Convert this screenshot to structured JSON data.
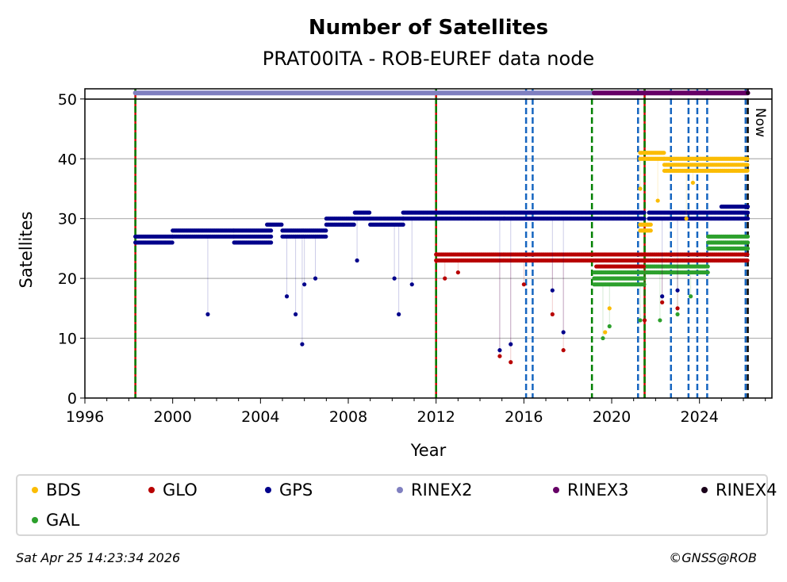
{
  "chart_data": {
    "type": "scatter",
    "title": "Number of Satellites",
    "subtitle": "PRAT00ITA - ROB-EUREF data node",
    "xlabel": "Year",
    "ylabel": "Satellites",
    "xlim": [
      1996,
      2027.3
    ],
    "ylim": [
      0,
      51.7
    ],
    "xticks": [
      "1996",
      "2000",
      "2004",
      "2008",
      "2012",
      "2016",
      "2020",
      "2024"
    ],
    "yticks": [
      "0",
      "10",
      "20",
      "30",
      "40",
      "50"
    ],
    "grid": "horizontal",
    "legend_placement": "below",
    "now_label": "Now",
    "series": [
      {
        "name": "BDS",
        "color": "#fbbc04",
        "segments": [
          {
            "from": 2021.3,
            "to": 2022.4,
            "values": [
              40,
              41
            ]
          },
          {
            "from": 2022.4,
            "to": 2026.2,
            "values": [
              38,
              39,
              40
            ]
          },
          {
            "from": 2021.3,
            "to": 2021.8,
            "values": [
              28,
              29
            ]
          }
        ],
        "outliers": [
          [
            2019.7,
            11
          ],
          [
            2019.9,
            15
          ],
          [
            2021.3,
            35
          ],
          [
            2022.1,
            33
          ],
          [
            2023.4,
            30
          ],
          [
            2023.7,
            36
          ]
        ]
      },
      {
        "name": "GLO",
        "color": "#b80000",
        "segments": [
          {
            "from": 2012,
            "to": 2019.3,
            "values": [
              23,
              24
            ]
          },
          {
            "from": 2019.3,
            "to": 2021.5,
            "values": [
              22,
              23,
              24
            ]
          },
          {
            "from": 2021.5,
            "to": 2026.2,
            "values": [
              23,
              24
            ]
          }
        ],
        "outliers": [
          [
            2012.4,
            20
          ],
          [
            2013,
            21
          ],
          [
            2014.9,
            7
          ],
          [
            2015.4,
            6
          ],
          [
            2016,
            19
          ],
          [
            2017.3,
            14
          ],
          [
            2017.8,
            8
          ],
          [
            2021.5,
            13
          ],
          [
            2022.3,
            16
          ],
          [
            2023,
            15
          ]
        ]
      },
      {
        "name": "GPS",
        "color": "#00008b",
        "segments": [
          {
            "from": 1998.3,
            "to": 2000,
            "values": [
              26,
              27
            ]
          },
          {
            "from": 2000,
            "to": 2002.8,
            "values": [
              27,
              28
            ]
          },
          {
            "from": 2002.8,
            "to": 2004.5,
            "values": [
              26,
              27,
              28
            ]
          },
          {
            "from": 2004.3,
            "to": 2005,
            "values": [
              29
            ]
          },
          {
            "from": 2005,
            "to": 2007,
            "values": [
              27,
              28
            ]
          },
          {
            "from": 2007,
            "to": 2008.3,
            "values": [
              29,
              30
            ]
          },
          {
            "from": 2008.3,
            "to": 2009,
            "values": [
              30,
              31
            ]
          },
          {
            "from": 2009,
            "to": 2010.5,
            "values": [
              29,
              30
            ]
          },
          {
            "from": 2010.5,
            "to": 2012,
            "values": [
              30,
              31
            ]
          },
          {
            "from": 2012,
            "to": 2021.5,
            "values": [
              30,
              31
            ]
          },
          {
            "from": 2021.7,
            "to": 2026.2,
            "values": [
              30,
              31
            ]
          },
          {
            "from": 2025,
            "to": 2026.2,
            "values": [
              32
            ]
          }
        ],
        "outliers": [
          [
            2001.6,
            14
          ],
          [
            2005.2,
            17
          ],
          [
            2005.6,
            14
          ],
          [
            2005.9,
            9
          ],
          [
            2006,
            19
          ],
          [
            2006.5,
            20
          ],
          [
            2008.4,
            23
          ],
          [
            2010.1,
            20
          ],
          [
            2010.3,
            14
          ],
          [
            2010.9,
            19
          ],
          [
            2014.9,
            8
          ],
          [
            2015.4,
            9
          ],
          [
            2017.3,
            18
          ],
          [
            2017.8,
            11
          ],
          [
            2022.3,
            17
          ],
          [
            2023,
            18
          ]
        ]
      },
      {
        "name": "GAL",
        "color": "#2ca02c",
        "segments": [
          {
            "from": 2019.2,
            "to": 2021.5,
            "values": [
              19,
              20,
              21
            ]
          },
          {
            "from": 2021.5,
            "to": 2024.4,
            "values": [
              21,
              22,
              23
            ]
          },
          {
            "from": 2024.4,
            "to": 2026.2,
            "values": [
              25,
              26,
              27
            ]
          }
        ],
        "outliers": [
          [
            2019.6,
            10
          ],
          [
            2019.9,
            12
          ],
          [
            2021.3,
            13
          ],
          [
            2022.2,
            13
          ],
          [
            2023,
            14
          ],
          [
            2023.6,
            17
          ]
        ]
      }
    ],
    "rinex": [
      {
        "name": "RINEX2",
        "color": "#8080c0",
        "from": 1998.3,
        "to": 2019.2,
        "value": 51
      },
      {
        "name": "RINEX3",
        "color": "#660066",
        "from": 2019.2,
        "to": 2026.2,
        "value": 51
      },
      {
        "name": "RINEX4",
        "color": "#1a001a",
        "from": 2026.2,
        "to": 2026.2,
        "value": 51
      }
    ],
    "events": [
      {
        "year": 1998.3,
        "kind": "receiver-antenna"
      },
      {
        "year": 2012.0,
        "kind": "receiver-antenna"
      },
      {
        "year": 2016.1,
        "kind": "firmware"
      },
      {
        "year": 2016.4,
        "kind": "firmware"
      },
      {
        "year": 2019.1,
        "kind": "receiver"
      },
      {
        "year": 2021.2,
        "kind": "firmware"
      },
      {
        "year": 2021.5,
        "kind": "receiver-antenna"
      },
      {
        "year": 2022.7,
        "kind": "firmware"
      },
      {
        "year": 2023.5,
        "kind": "firmware"
      },
      {
        "year": 2023.9,
        "kind": "firmware"
      },
      {
        "year": 2024.35,
        "kind": "firmware"
      },
      {
        "year": 2026.1,
        "kind": "firmware"
      },
      {
        "year": 2026.2,
        "kind": "now"
      }
    ]
  },
  "legend": [
    "BDS",
    "GLO",
    "GPS",
    "RINEX2",
    "RINEX3",
    "RINEX4",
    "GAL"
  ],
  "footer": {
    "timestamp": "Sat Apr 25 14:23:34 2026",
    "copyright": "©GNSS@ROB"
  }
}
